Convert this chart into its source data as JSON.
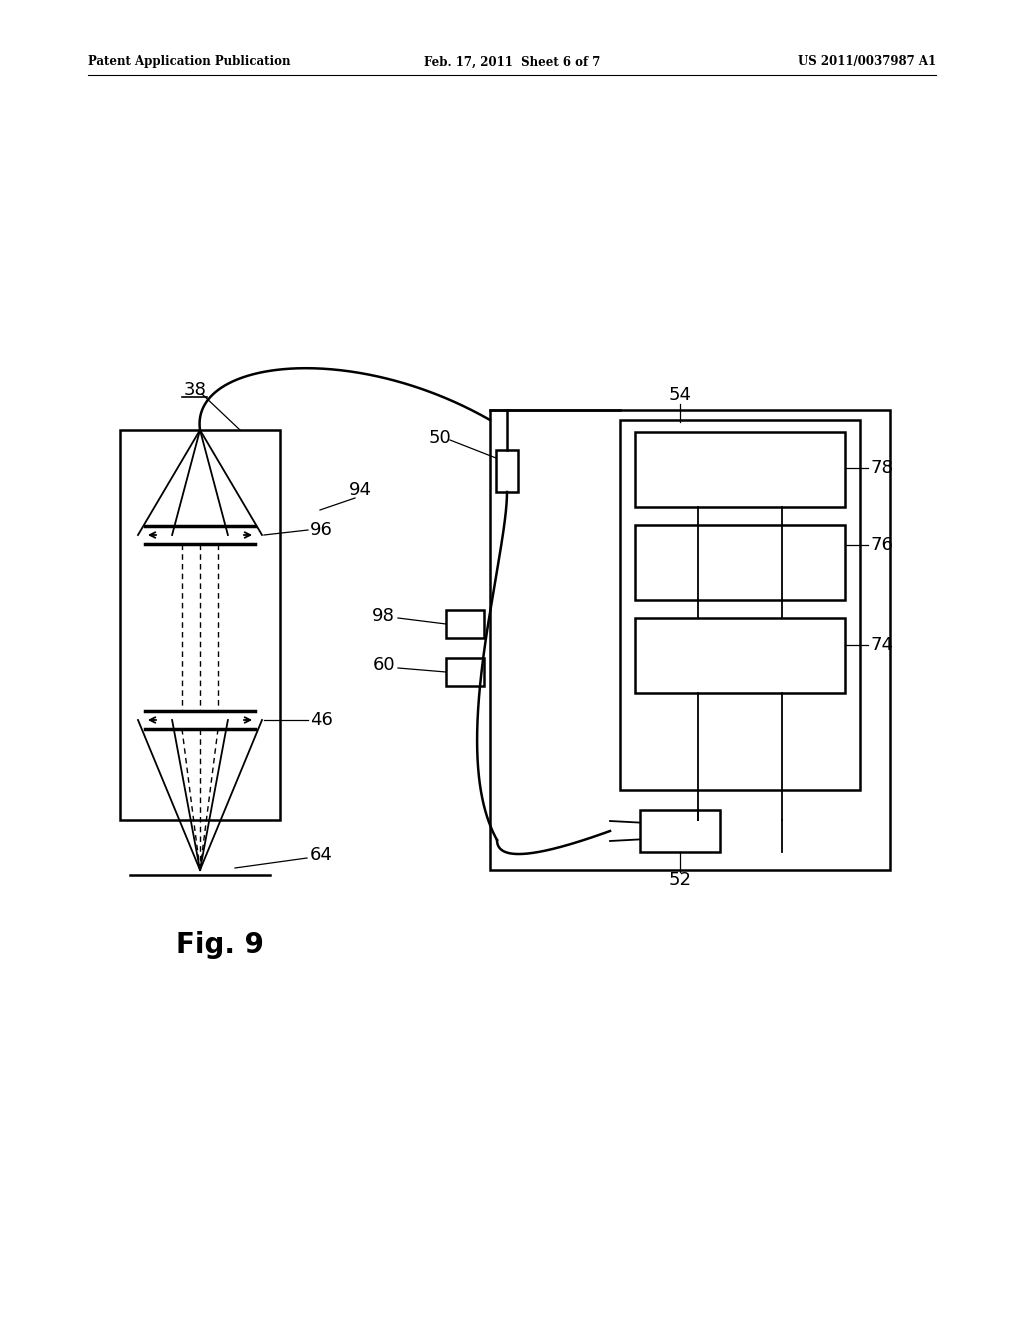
{
  "bg_color": "#ffffff",
  "line_color": "#000000",
  "header_left": "Patent Application Publication",
  "header_mid": "Feb. 17, 2011  Sheet 6 of 7",
  "header_right": "US 2011/0037987 A1",
  "fig_label": "Fig. 9"
}
